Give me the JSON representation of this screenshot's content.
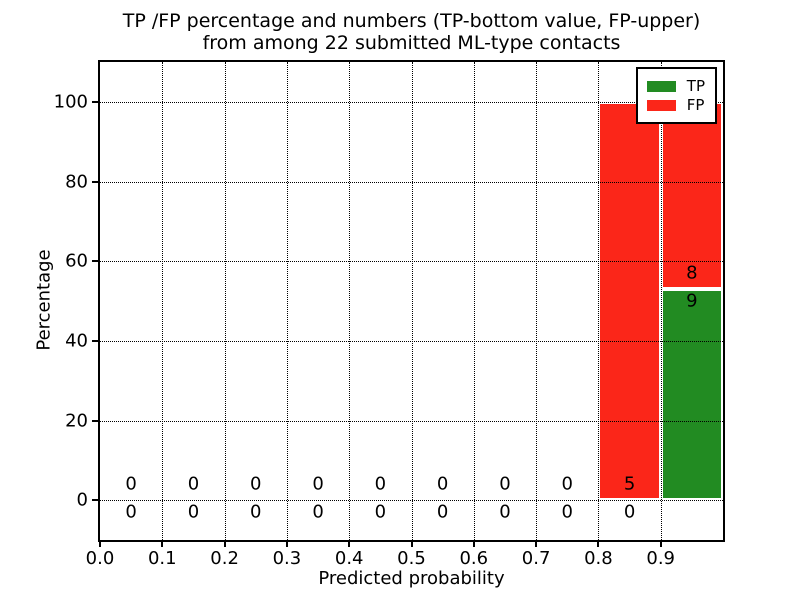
{
  "title": {
    "line1": "TP /FP percentage and numbers (TP-bottom value, FP-upper)",
    "line2": "from among 22 submitted ML-type contacts"
  },
  "axes": {
    "xlabel": "Predicted probability",
    "ylabel": "Percentage",
    "x_tick_labels": [
      "0.0",
      "0.1",
      "0.2",
      "0.3",
      "0.4",
      "0.5",
      "0.6",
      "0.7",
      "0.8",
      "0.9"
    ],
    "y_tick_labels": [
      "0",
      "20",
      "40",
      "60",
      "80",
      "100"
    ]
  },
  "legend": {
    "items": [
      {
        "label": "TP",
        "color": "#228b22"
      },
      {
        "label": "FP",
        "color": "#fb2619"
      }
    ]
  },
  "chart_data": {
    "type": "bar",
    "stacked": true,
    "title": "TP /FP percentage and numbers (TP-bottom value, FP-upper) from among 22 submitted ML-type contacts",
    "xlabel": "Predicted probability",
    "ylabel": "Percentage",
    "xlim": [
      0.0,
      1.0
    ],
    "ylim": [
      -10,
      110
    ],
    "grid": "dotted",
    "legend_position": "upper right",
    "total_contacts": 22,
    "bin_width": 0.1,
    "bin_starts": [
      0.0,
      0.1,
      0.2,
      0.3,
      0.4,
      0.5,
      0.6,
      0.7,
      0.8,
      0.9
    ],
    "x_ticks": [
      0.0,
      0.1,
      0.2,
      0.3,
      0.4,
      0.5,
      0.6,
      0.7,
      0.8,
      0.9
    ],
    "y_ticks": [
      0,
      20,
      40,
      60,
      80,
      100
    ],
    "series": [
      {
        "name": "TP",
        "color": "#228b22",
        "counts": [
          0,
          0,
          0,
          0,
          0,
          0,
          0,
          0,
          0,
          9
        ],
        "percent": [
          0,
          0,
          0,
          0,
          0,
          0,
          0,
          0,
          0,
          52.94
        ]
      },
      {
        "name": "FP",
        "color": "#fb2619",
        "counts": [
          0,
          0,
          0,
          0,
          0,
          0,
          0,
          0,
          5,
          8
        ],
        "percent": [
          0,
          0,
          0,
          0,
          0,
          0,
          0,
          0,
          100,
          47.06
        ]
      }
    ],
    "label_offsets": {
      "fp_above_tp_top": 4,
      "tp_below_tp_top": -3
    }
  }
}
